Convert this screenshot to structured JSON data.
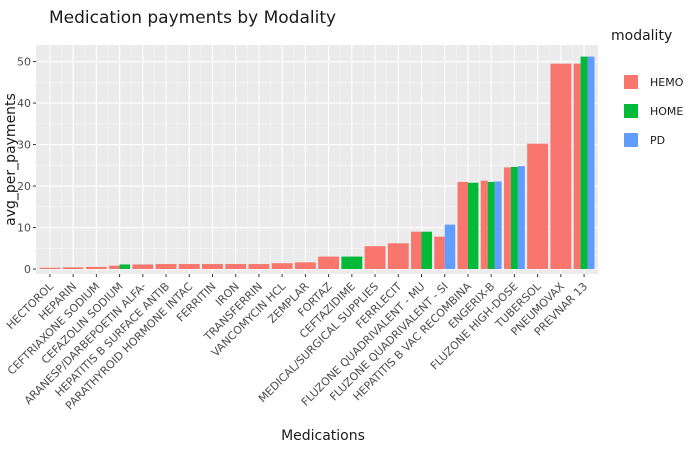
{
  "chart_data": {
    "type": "bar",
    "title": "Medication payments by Modality",
    "xlabel": "Medications",
    "ylabel": "avg_per_payments",
    "ylim": [
      -1.2,
      54
    ],
    "yticks": [
      0,
      10,
      20,
      30,
      40,
      50
    ],
    "grid": true,
    "legend": {
      "title": "modality",
      "placement": "right"
    },
    "series": [
      {
        "name": "HEMO",
        "color": "#F8766D"
      },
      {
        "name": "HOME",
        "color": "#00BA38"
      },
      {
        "name": "PD",
        "color": "#619CFF"
      }
    ],
    "categories": [
      "HECTOROL",
      "HEPARIN",
      "CEFTRIAXONE SODIUM",
      "CEFAZOLIN SODIUM",
      "ARANESP/DARBEPOETIN ALFA-",
      "HEPATITIS B SURFACE ANTIB",
      "PARATHYROID HORMONE INTAC",
      "FERRITIN",
      "IRON",
      "TRANSFERRIN",
      "VANCOMYCIN HCL",
      "ZEMPLAR",
      "FORTAZ",
      "CEFTAZIDIME",
      "MEDICAL/SURGICAL SUPPLIES",
      "FERRLECIT",
      "FLUZONE QUADRIVALENT - MU",
      "FLUZONE QUADRIVALENT - SI",
      "HEPATITIS B VAC RECOMBINA",
      "ENGERIX-B",
      "FLUZONE HIGH-DOSE",
      "TUBERSOL",
      "PNEUMOVAX",
      "PREVNAR 13"
    ],
    "bars": [
      {
        "category": "HECTOROL",
        "values": {
          "HEMO": 0.3
        }
      },
      {
        "category": "HEPARIN",
        "values": {
          "HEMO": 0.4
        }
      },
      {
        "category": "CEFTRIAXONE SODIUM",
        "values": {
          "HEMO": 0.5
        }
      },
      {
        "category": "CEFAZOLIN SODIUM",
        "values": {
          "HEMO": 0.8,
          "HOME": 1.1
        }
      },
      {
        "category": "ARANESP/DARBEPOETIN ALFA-",
        "values": {
          "HEMO": 1.1
        }
      },
      {
        "category": "HEPATITIS B SURFACE ANTIB",
        "values": {
          "HEMO": 1.2
        }
      },
      {
        "category": "PARATHYROID HORMONE INTAC",
        "values": {
          "HEMO": 1.2
        }
      },
      {
        "category": "FERRITIN",
        "values": {
          "HEMO": 1.2
        }
      },
      {
        "category": "IRON",
        "values": {
          "HEMO": 1.2
        }
      },
      {
        "category": "TRANSFERRIN",
        "values": {
          "HEMO": 1.2
        }
      },
      {
        "category": "VANCOMYCIN HCL",
        "values": {
          "HEMO": 1.4
        }
      },
      {
        "category": "ZEMPLAR",
        "values": {
          "HEMO": 1.6
        }
      },
      {
        "category": "FORTAZ",
        "values": {
          "HEMO": 3.0
        }
      },
      {
        "category": "CEFTAZIDIME",
        "values": {
          "HOME": 3.0
        }
      },
      {
        "category": "MEDICAL/SURGICAL SUPPLIES",
        "values": {
          "HEMO": 5.5
        }
      },
      {
        "category": "FERRLECIT",
        "values": {
          "HEMO": 6.2
        }
      },
      {
        "category": "FLUZONE QUADRIVALENT - MU",
        "values": {
          "HEMO": 9.0,
          "HOME": 9.0
        }
      },
      {
        "category": "FLUZONE QUADRIVALENT - SI",
        "values": {
          "HEMO": 7.8,
          "PD": 10.7
        }
      },
      {
        "category": "HEPATITIS B VAC RECOMBINA",
        "values": {
          "HEMO": 21.0,
          "HOME": 20.8
        }
      },
      {
        "category": "ENGERIX-B",
        "values": {
          "HEMO": 21.3,
          "HOME": 21.0,
          "PD": 21.1
        }
      },
      {
        "category": "FLUZONE HIGH-DOSE",
        "values": {
          "HEMO": 24.5,
          "HOME": 24.6,
          "PD": 24.8
        }
      },
      {
        "category": "TUBERSOL",
        "values": {
          "HEMO": 30.2
        }
      },
      {
        "category": "PNEUMOVAX",
        "values": {
          "HEMO": 49.5
        }
      },
      {
        "category": "PREVNAR 13",
        "values": {
          "HEMO": 49.5,
          "HOME": 51.2,
          "PD": 51.2
        }
      }
    ]
  }
}
